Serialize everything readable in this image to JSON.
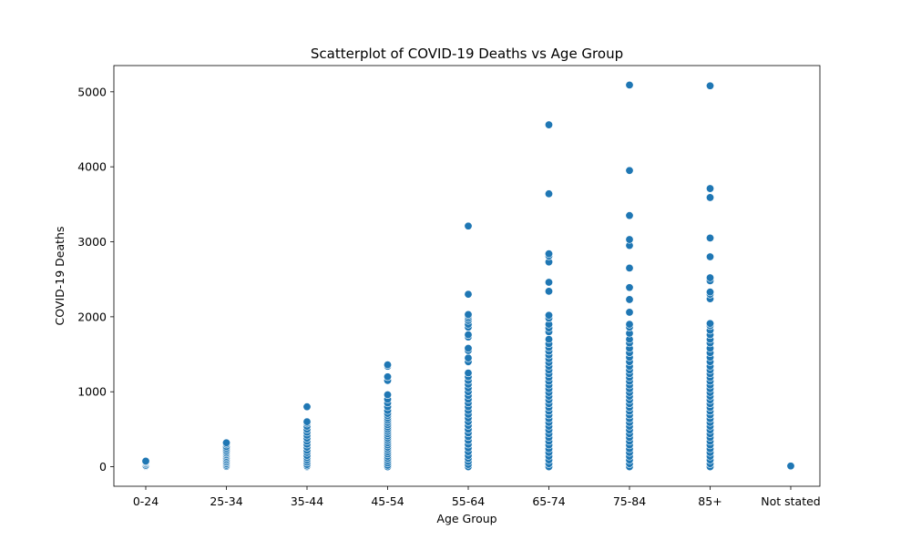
{
  "chart_data": {
    "type": "scatter",
    "title": "Scatterplot of COVID-19 Deaths vs Age Group",
    "xlabel": "Age Group",
    "ylabel": "COVID-19 Deaths",
    "categories": [
      "0-24",
      "25-34",
      "35-44",
      "45-54",
      "55-64",
      "65-74",
      "75-84",
      "85+",
      "Not stated"
    ],
    "ylim": [
      -260,
      5350
    ],
    "yticks": [
      0,
      1000,
      2000,
      3000,
      4000,
      5000
    ],
    "grid": false,
    "legend": "none",
    "marker_color": "#1f77b4",
    "series": [
      {
        "points": [
          {
            "x": "0-24",
            "y": 0
          },
          {
            "x": "0-24",
            "y": 5
          },
          {
            "x": "0-24",
            "y": 10
          },
          {
            "x": "0-24",
            "y": 20
          },
          {
            "x": "0-24",
            "y": 40
          },
          {
            "x": "0-24",
            "y": 55
          },
          {
            "x": "0-24",
            "y": 65
          },
          {
            "x": "0-24",
            "y": 75
          },
          {
            "x": "25-34",
            "y": 0
          },
          {
            "x": "25-34",
            "y": 5
          },
          {
            "x": "25-34",
            "y": 20
          },
          {
            "x": "25-34",
            "y": 40
          },
          {
            "x": "25-34",
            "y": 60
          },
          {
            "x": "25-34",
            "y": 80
          },
          {
            "x": "25-34",
            "y": 100
          },
          {
            "x": "25-34",
            "y": 120
          },
          {
            "x": "25-34",
            "y": 140
          },
          {
            "x": "25-34",
            "y": 160
          },
          {
            "x": "25-34",
            "y": 180
          },
          {
            "x": "25-34",
            "y": 200
          },
          {
            "x": "25-34",
            "y": 220
          },
          {
            "x": "25-34",
            "y": 245
          },
          {
            "x": "25-34",
            "y": 270
          },
          {
            "x": "25-34",
            "y": 300
          },
          {
            "x": "25-34",
            "y": 320
          },
          {
            "x": "35-44",
            "y": 0
          },
          {
            "x": "35-44",
            "y": 10
          },
          {
            "x": "35-44",
            "y": 30
          },
          {
            "x": "35-44",
            "y": 60
          },
          {
            "x": "35-44",
            "y": 90
          },
          {
            "x": "35-44",
            "y": 120
          },
          {
            "x": "35-44",
            "y": 150
          },
          {
            "x": "35-44",
            "y": 190
          },
          {
            "x": "35-44",
            "y": 220
          },
          {
            "x": "35-44",
            "y": 260
          },
          {
            "x": "35-44",
            "y": 300
          },
          {
            "x": "35-44",
            "y": 340
          },
          {
            "x": "35-44",
            "y": 380
          },
          {
            "x": "35-44",
            "y": 420
          },
          {
            "x": "35-44",
            "y": 460
          },
          {
            "x": "35-44",
            "y": 500
          },
          {
            "x": "35-44",
            "y": 540
          },
          {
            "x": "35-44",
            "y": 580
          },
          {
            "x": "35-44",
            "y": 600
          },
          {
            "x": "35-44",
            "y": 800
          },
          {
            "x": "45-54",
            "y": 0
          },
          {
            "x": "45-54",
            "y": 20
          },
          {
            "x": "45-54",
            "y": 50
          },
          {
            "x": "45-54",
            "y": 80
          },
          {
            "x": "45-54",
            "y": 110
          },
          {
            "x": "45-54",
            "y": 140
          },
          {
            "x": "45-54",
            "y": 170
          },
          {
            "x": "45-54",
            "y": 200
          },
          {
            "x": "45-54",
            "y": 230
          },
          {
            "x": "45-54",
            "y": 260
          },
          {
            "x": "45-54",
            "y": 290
          },
          {
            "x": "45-54",
            "y": 320
          },
          {
            "x": "45-54",
            "y": 350
          },
          {
            "x": "45-54",
            "y": 380
          },
          {
            "x": "45-54",
            "y": 410
          },
          {
            "x": "45-54",
            "y": 440
          },
          {
            "x": "45-54",
            "y": 470
          },
          {
            "x": "45-54",
            "y": 500
          },
          {
            "x": "45-54",
            "y": 530
          },
          {
            "x": "45-54",
            "y": 560
          },
          {
            "x": "45-54",
            "y": 590
          },
          {
            "x": "45-54",
            "y": 620
          },
          {
            "x": "45-54",
            "y": 650
          },
          {
            "x": "45-54",
            "y": 680
          },
          {
            "x": "45-54",
            "y": 710
          },
          {
            "x": "45-54",
            "y": 750
          },
          {
            "x": "45-54",
            "y": 800
          },
          {
            "x": "45-54",
            "y": 850
          },
          {
            "x": "45-54",
            "y": 900
          },
          {
            "x": "45-54",
            "y": 960
          },
          {
            "x": "45-54",
            "y": 1150
          },
          {
            "x": "45-54",
            "y": 1200
          },
          {
            "x": "45-54",
            "y": 1340
          },
          {
            "x": "45-54",
            "y": 1360
          },
          {
            "x": "55-64",
            "y": 0
          },
          {
            "x": "55-64",
            "y": 30
          },
          {
            "x": "55-64",
            "y": 70
          },
          {
            "x": "55-64",
            "y": 110
          },
          {
            "x": "55-64",
            "y": 150
          },
          {
            "x": "55-64",
            "y": 200
          },
          {
            "x": "55-64",
            "y": 250
          },
          {
            "x": "55-64",
            "y": 300
          },
          {
            "x": "55-64",
            "y": 350
          },
          {
            "x": "55-64",
            "y": 400
          },
          {
            "x": "55-64",
            "y": 450
          },
          {
            "x": "55-64",
            "y": 500
          },
          {
            "x": "55-64",
            "y": 550
          },
          {
            "x": "55-64",
            "y": 600
          },
          {
            "x": "55-64",
            "y": 650
          },
          {
            "x": "55-64",
            "y": 700
          },
          {
            "x": "55-64",
            "y": 750
          },
          {
            "x": "55-64",
            "y": 800
          },
          {
            "x": "55-64",
            "y": 850
          },
          {
            "x": "55-64",
            "y": 900
          },
          {
            "x": "55-64",
            "y": 950
          },
          {
            "x": "55-64",
            "y": 1000
          },
          {
            "x": "55-64",
            "y": 1050
          },
          {
            "x": "55-64",
            "y": 1100
          },
          {
            "x": "55-64",
            "y": 1150
          },
          {
            "x": "55-64",
            "y": 1200
          },
          {
            "x": "55-64",
            "y": 1250
          },
          {
            "x": "55-64",
            "y": 1400
          },
          {
            "x": "55-64",
            "y": 1450
          },
          {
            "x": "55-64",
            "y": 1550
          },
          {
            "x": "55-64",
            "y": 1580
          },
          {
            "x": "55-64",
            "y": 1730
          },
          {
            "x": "55-64",
            "y": 1760
          },
          {
            "x": "55-64",
            "y": 1860
          },
          {
            "x": "55-64",
            "y": 1900
          },
          {
            "x": "55-64",
            "y": 1950
          },
          {
            "x": "55-64",
            "y": 1980
          },
          {
            "x": "55-64",
            "y": 2010
          },
          {
            "x": "55-64",
            "y": 2030
          },
          {
            "x": "55-64",
            "y": 2300
          },
          {
            "x": "55-64",
            "y": 3210
          },
          {
            "x": "65-74",
            "y": 0
          },
          {
            "x": "65-74",
            "y": 40
          },
          {
            "x": "65-74",
            "y": 90
          },
          {
            "x": "65-74",
            "y": 140
          },
          {
            "x": "65-74",
            "y": 190
          },
          {
            "x": "65-74",
            "y": 240
          },
          {
            "x": "65-74",
            "y": 290
          },
          {
            "x": "65-74",
            "y": 340
          },
          {
            "x": "65-74",
            "y": 390
          },
          {
            "x": "65-74",
            "y": 440
          },
          {
            "x": "65-74",
            "y": 490
          },
          {
            "x": "65-74",
            "y": 540
          },
          {
            "x": "65-74",
            "y": 590
          },
          {
            "x": "65-74",
            "y": 640
          },
          {
            "x": "65-74",
            "y": 690
          },
          {
            "x": "65-74",
            "y": 740
          },
          {
            "x": "65-74",
            "y": 790
          },
          {
            "x": "65-74",
            "y": 840
          },
          {
            "x": "65-74",
            "y": 890
          },
          {
            "x": "65-74",
            "y": 940
          },
          {
            "x": "65-74",
            "y": 990
          },
          {
            "x": "65-74",
            "y": 1040
          },
          {
            "x": "65-74",
            "y": 1090
          },
          {
            "x": "65-74",
            "y": 1140
          },
          {
            "x": "65-74",
            "y": 1190
          },
          {
            "x": "65-74",
            "y": 1240
          },
          {
            "x": "65-74",
            "y": 1290
          },
          {
            "x": "65-74",
            "y": 1340
          },
          {
            "x": "65-74",
            "y": 1390
          },
          {
            "x": "65-74",
            "y": 1440
          },
          {
            "x": "65-74",
            "y": 1490
          },
          {
            "x": "65-74",
            "y": 1540
          },
          {
            "x": "65-74",
            "y": 1590
          },
          {
            "x": "65-74",
            "y": 1640
          },
          {
            "x": "65-74",
            "y": 1700
          },
          {
            "x": "65-74",
            "y": 1800
          },
          {
            "x": "65-74",
            "y": 1850
          },
          {
            "x": "65-74",
            "y": 1900
          },
          {
            "x": "65-74",
            "y": 1980
          },
          {
            "x": "65-74",
            "y": 2020
          },
          {
            "x": "65-74",
            "y": 2340
          },
          {
            "x": "65-74",
            "y": 2460
          },
          {
            "x": "65-74",
            "y": 2730
          },
          {
            "x": "65-74",
            "y": 2810
          },
          {
            "x": "65-74",
            "y": 2840
          },
          {
            "x": "65-74",
            "y": 3640
          },
          {
            "x": "65-74",
            "y": 4560
          },
          {
            "x": "75-84",
            "y": 0
          },
          {
            "x": "75-84",
            "y": 40
          },
          {
            "x": "75-84",
            "y": 90
          },
          {
            "x": "75-84",
            "y": 140
          },
          {
            "x": "75-84",
            "y": 190
          },
          {
            "x": "75-84",
            "y": 240
          },
          {
            "x": "75-84",
            "y": 290
          },
          {
            "x": "75-84",
            "y": 340
          },
          {
            "x": "75-84",
            "y": 390
          },
          {
            "x": "75-84",
            "y": 440
          },
          {
            "x": "75-84",
            "y": 490
          },
          {
            "x": "75-84",
            "y": 540
          },
          {
            "x": "75-84",
            "y": 590
          },
          {
            "x": "75-84",
            "y": 640
          },
          {
            "x": "75-84",
            "y": 690
          },
          {
            "x": "75-84",
            "y": 740
          },
          {
            "x": "75-84",
            "y": 790
          },
          {
            "x": "75-84",
            "y": 840
          },
          {
            "x": "75-84",
            "y": 890
          },
          {
            "x": "75-84",
            "y": 940
          },
          {
            "x": "75-84",
            "y": 990
          },
          {
            "x": "75-84",
            "y": 1040
          },
          {
            "x": "75-84",
            "y": 1090
          },
          {
            "x": "75-84",
            "y": 1140
          },
          {
            "x": "75-84",
            "y": 1190
          },
          {
            "x": "75-84",
            "y": 1240
          },
          {
            "x": "75-84",
            "y": 1290
          },
          {
            "x": "75-84",
            "y": 1340
          },
          {
            "x": "75-84",
            "y": 1400
          },
          {
            "x": "75-84",
            "y": 1460
          },
          {
            "x": "75-84",
            "y": 1520
          },
          {
            "x": "75-84",
            "y": 1580
          },
          {
            "x": "75-84",
            "y": 1650
          },
          {
            "x": "75-84",
            "y": 1700
          },
          {
            "x": "75-84",
            "y": 1780
          },
          {
            "x": "75-84",
            "y": 1860
          },
          {
            "x": "75-84",
            "y": 1900
          },
          {
            "x": "75-84",
            "y": 2060
          },
          {
            "x": "75-84",
            "y": 2230
          },
          {
            "x": "75-84",
            "y": 2390
          },
          {
            "x": "75-84",
            "y": 2650
          },
          {
            "x": "75-84",
            "y": 2950
          },
          {
            "x": "75-84",
            "y": 3030
          },
          {
            "x": "75-84",
            "y": 3350
          },
          {
            "x": "75-84",
            "y": 3950
          },
          {
            "x": "75-84",
            "y": 5090
          },
          {
            "x": "85+",
            "y": 0
          },
          {
            "x": "85+",
            "y": 40
          },
          {
            "x": "85+",
            "y": 90
          },
          {
            "x": "85+",
            "y": 140
          },
          {
            "x": "85+",
            "y": 190
          },
          {
            "x": "85+",
            "y": 240
          },
          {
            "x": "85+",
            "y": 290
          },
          {
            "x": "85+",
            "y": 340
          },
          {
            "x": "85+",
            "y": 390
          },
          {
            "x": "85+",
            "y": 440
          },
          {
            "x": "85+",
            "y": 490
          },
          {
            "x": "85+",
            "y": 540
          },
          {
            "x": "85+",
            "y": 590
          },
          {
            "x": "85+",
            "y": 640
          },
          {
            "x": "85+",
            "y": 690
          },
          {
            "x": "85+",
            "y": 740
          },
          {
            "x": "85+",
            "y": 790
          },
          {
            "x": "85+",
            "y": 840
          },
          {
            "x": "85+",
            "y": 890
          },
          {
            "x": "85+",
            "y": 940
          },
          {
            "x": "85+",
            "y": 990
          },
          {
            "x": "85+",
            "y": 1040
          },
          {
            "x": "85+",
            "y": 1090
          },
          {
            "x": "85+",
            "y": 1140
          },
          {
            "x": "85+",
            "y": 1190
          },
          {
            "x": "85+",
            "y": 1240
          },
          {
            "x": "85+",
            "y": 1290
          },
          {
            "x": "85+",
            "y": 1340
          },
          {
            "x": "85+",
            "y": 1400
          },
          {
            "x": "85+",
            "y": 1460
          },
          {
            "x": "85+",
            "y": 1520
          },
          {
            "x": "85+",
            "y": 1580
          },
          {
            "x": "85+",
            "y": 1650
          },
          {
            "x": "85+",
            "y": 1700
          },
          {
            "x": "85+",
            "y": 1760
          },
          {
            "x": "85+",
            "y": 1820
          },
          {
            "x": "85+",
            "y": 1880
          },
          {
            "x": "85+",
            "y": 1910
          },
          {
            "x": "85+",
            "y": 2240
          },
          {
            "x": "85+",
            "y": 2300
          },
          {
            "x": "85+",
            "y": 2330
          },
          {
            "x": "85+",
            "y": 2480
          },
          {
            "x": "85+",
            "y": 2520
          },
          {
            "x": "85+",
            "y": 2800
          },
          {
            "x": "85+",
            "y": 3050
          },
          {
            "x": "85+",
            "y": 3590
          },
          {
            "x": "85+",
            "y": 3710
          },
          {
            "x": "85+",
            "y": 5080
          },
          {
            "x": "Not stated",
            "y": 0
          },
          {
            "x": "Not stated",
            "y": 5
          },
          {
            "x": "Not stated",
            "y": 10
          }
        ]
      }
    ]
  }
}
